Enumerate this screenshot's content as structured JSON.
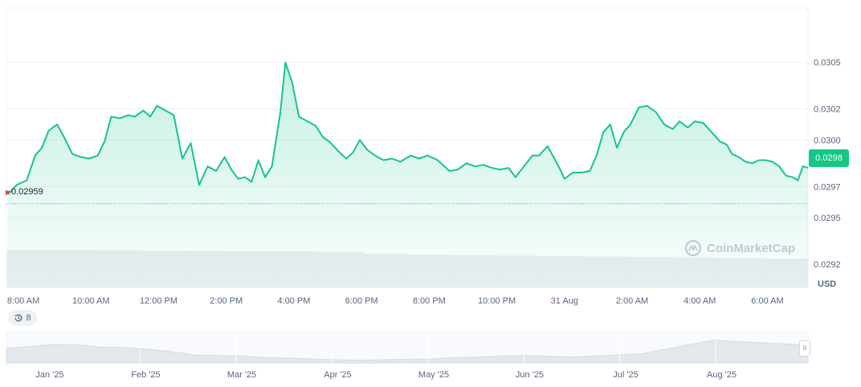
{
  "chart_data": {
    "type": "area",
    "currency": "USD",
    "current_price": "0.0298",
    "reference_price": "0.02959",
    "watermark": "CoinMarketCap",
    "history_count": "8",
    "ylim": [
      0.02905,
      0.03085
    ],
    "y_ticks": [
      {
        "value": 0.0305,
        "label": "0.0305"
      },
      {
        "value": 0.0302,
        "label": "0.0302"
      },
      {
        "value": 0.03,
        "label": "0.0300"
      },
      {
        "value": 0.0297,
        "label": "0.0297"
      },
      {
        "value": 0.0295,
        "label": "0.0295"
      },
      {
        "value": 0.0292,
        "label": "0.0292"
      }
    ],
    "x_range": [
      7.5,
      31.2
    ],
    "x_ticks": [
      {
        "x": 8,
        "label": "8:00 AM"
      },
      {
        "x": 10,
        "label": "10:00 AM"
      },
      {
        "x": 12,
        "label": "12:00 PM"
      },
      {
        "x": 14,
        "label": "2:00 PM"
      },
      {
        "x": 16,
        "label": "4:00 PM"
      },
      {
        "x": 18,
        "label": "6:00 PM"
      },
      {
        "x": 20,
        "label": "8:00 PM"
      },
      {
        "x": 22,
        "label": "10:00 PM"
      },
      {
        "x": 24,
        "label": "31 Aug"
      },
      {
        "x": 26,
        "label": "2:00 AM"
      },
      {
        "x": 28,
        "label": "4:00 AM"
      },
      {
        "x": 30,
        "label": "6:00 AM"
      }
    ],
    "series": [
      {
        "color": "#16c784",
        "points": [
          [
            7.55,
            0.02965
          ],
          [
            7.8,
            0.02971
          ],
          [
            8.1,
            0.02974
          ],
          [
            8.35,
            0.0299
          ],
          [
            8.55,
            0.02995
          ],
          [
            8.75,
            0.03006
          ],
          [
            9.0,
            0.0301
          ],
          [
            9.2,
            0.03002
          ],
          [
            9.45,
            0.02991
          ],
          [
            9.7,
            0.02989
          ],
          [
            9.95,
            0.02988
          ],
          [
            10.2,
            0.0299
          ],
          [
            10.4,
            0.02999
          ],
          [
            10.6,
            0.03015
          ],
          [
            10.85,
            0.03014
          ],
          [
            11.1,
            0.03016
          ],
          [
            11.3,
            0.03015
          ],
          [
            11.55,
            0.03019
          ],
          [
            11.75,
            0.03015
          ],
          [
            11.95,
            0.03022
          ],
          [
            12.2,
            0.03019
          ],
          [
            12.45,
            0.03016
          ],
          [
            12.7,
            0.02988
          ],
          [
            12.95,
            0.02998
          ],
          [
            13.2,
            0.02971
          ],
          [
            13.45,
            0.02983
          ],
          [
            13.7,
            0.0298
          ],
          [
            13.95,
            0.02989
          ],
          [
            14.15,
            0.02981
          ],
          [
            14.35,
            0.02975
          ],
          [
            14.55,
            0.02976
          ],
          [
            14.75,
            0.02973
          ],
          [
            14.95,
            0.02987
          ],
          [
            15.15,
            0.02976
          ],
          [
            15.35,
            0.02983
          ],
          [
            15.6,
            0.03018
          ],
          [
            15.75,
            0.0305
          ],
          [
            15.95,
            0.03037
          ],
          [
            16.15,
            0.03015
          ],
          [
            16.4,
            0.03012
          ],
          [
            16.65,
            0.03009
          ],
          [
            16.85,
            0.03002
          ],
          [
            17.05,
            0.02999
          ],
          [
            17.35,
            0.02992
          ],
          [
            17.55,
            0.02988
          ],
          [
            17.75,
            0.02992
          ],
          [
            17.95,
            0.03
          ],
          [
            18.15,
            0.02994
          ],
          [
            18.4,
            0.0299
          ],
          [
            18.65,
            0.02987
          ],
          [
            18.9,
            0.02988
          ],
          [
            19.15,
            0.02986
          ],
          [
            19.45,
            0.0299
          ],
          [
            19.7,
            0.02988
          ],
          [
            19.95,
            0.0299
          ],
          [
            20.25,
            0.02987
          ],
          [
            20.6,
            0.0298
          ],
          [
            20.85,
            0.02981
          ],
          [
            21.1,
            0.02985
          ],
          [
            21.35,
            0.02983
          ],
          [
            21.6,
            0.02984
          ],
          [
            21.85,
            0.02982
          ],
          [
            22.1,
            0.02981
          ],
          [
            22.35,
            0.02982
          ],
          [
            22.55,
            0.02976
          ],
          [
            22.8,
            0.02983
          ],
          [
            23.05,
            0.0299
          ],
          [
            23.25,
            0.0299
          ],
          [
            23.5,
            0.02996
          ],
          [
            23.7,
            0.02988
          ],
          [
            23.85,
            0.02982
          ],
          [
            24.0,
            0.02975
          ],
          [
            24.25,
            0.02979
          ],
          [
            24.5,
            0.02979
          ],
          [
            24.75,
            0.0298
          ],
          [
            24.95,
            0.0299
          ],
          [
            25.15,
            0.03005
          ],
          [
            25.35,
            0.0301
          ],
          [
            25.55,
            0.02995
          ],
          [
            25.75,
            0.03005
          ],
          [
            25.95,
            0.0301
          ],
          [
            26.2,
            0.03021
          ],
          [
            26.45,
            0.03022
          ],
          [
            26.7,
            0.03018
          ],
          [
            26.95,
            0.0301
          ],
          [
            27.2,
            0.03007
          ],
          [
            27.4,
            0.03012
          ],
          [
            27.65,
            0.03008
          ],
          [
            27.85,
            0.03012
          ],
          [
            28.1,
            0.03011
          ],
          [
            28.35,
            0.03005
          ],
          [
            28.6,
            0.02999
          ],
          [
            28.8,
            0.02997
          ],
          [
            28.95,
            0.02991
          ],
          [
            29.15,
            0.02989
          ],
          [
            29.35,
            0.02986
          ],
          [
            29.55,
            0.02985
          ],
          [
            29.75,
            0.02987
          ],
          [
            29.95,
            0.02987
          ],
          [
            30.15,
            0.02986
          ],
          [
            30.35,
            0.02983
          ],
          [
            30.55,
            0.02977
          ],
          [
            30.75,
            0.02976
          ],
          [
            30.9,
            0.02974
          ],
          [
            31.05,
            0.02983
          ],
          [
            31.2,
            0.02982
          ]
        ]
      }
    ],
    "volume": [
      0.98,
      0.98,
      0.97,
      0.96,
      0.96,
      0.95,
      0.95,
      0.93,
      0.9,
      0.88,
      0.87,
      0.86,
      0.85,
      0.84,
      0.83,
      0.82,
      0.81,
      0.8
    ],
    "navigator": {
      "month_labels": [
        "Jan '25",
        "Feb '25",
        "Mar '25",
        "Apr '25",
        "May '25",
        "Jun '25",
        "Jul '25",
        "Aug '25"
      ],
      "values": [
        0.55,
        0.62,
        0.7,
        0.68,
        0.6,
        0.58,
        0.52,
        0.42,
        0.3,
        0.28,
        0.26,
        0.2,
        0.18,
        0.15,
        0.12,
        0.1,
        0.12,
        0.14,
        0.15,
        0.2,
        0.22,
        0.26,
        0.28,
        0.25,
        0.22,
        0.26,
        0.3,
        0.35,
        0.52,
        0.7,
        0.86,
        0.8,
        0.76,
        0.72,
        0.68
      ]
    }
  }
}
